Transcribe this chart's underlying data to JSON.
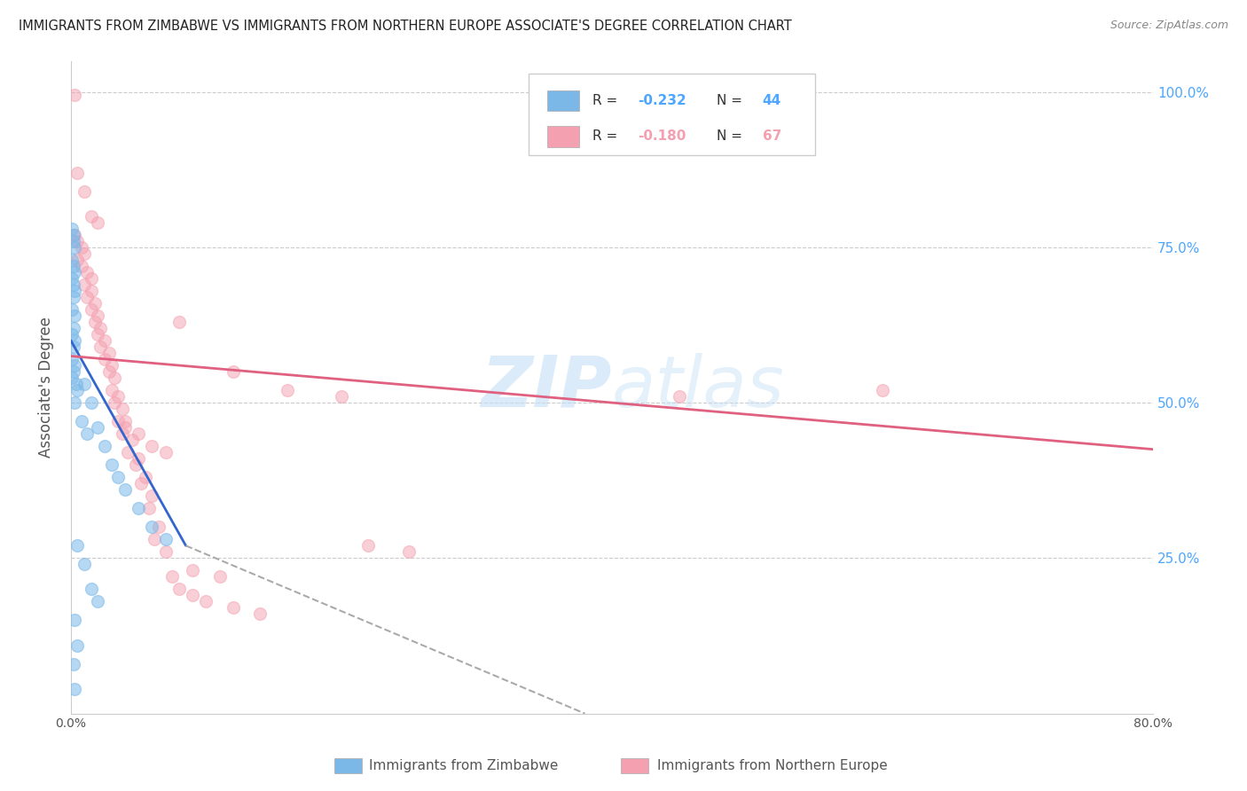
{
  "title": "IMMIGRANTS FROM ZIMBABWE VS IMMIGRANTS FROM NORTHERN EUROPE ASSOCIATE'S DEGREE CORRELATION CHART",
  "source": "Source: ZipAtlas.com",
  "ylabel": "Associate's Degree",
  "right_yticks": [
    "100.0%",
    "75.0%",
    "50.0%",
    "25.0%"
  ],
  "right_ytick_vals": [
    1.0,
    0.75,
    0.5,
    0.25
  ],
  "xlim": [
    0.0,
    0.8
  ],
  "ylim": [
    0.0,
    1.05
  ],
  "watermark": "ZIPatlas",
  "blue_scatter": [
    [
      0.001,
      0.78
    ],
    [
      0.002,
      0.77
    ],
    [
      0.002,
      0.76
    ],
    [
      0.003,
      0.75
    ],
    [
      0.001,
      0.73
    ],
    [
      0.002,
      0.72
    ],
    [
      0.003,
      0.71
    ],
    [
      0.001,
      0.7
    ],
    [
      0.002,
      0.69
    ],
    [
      0.003,
      0.68
    ],
    [
      0.002,
      0.67
    ],
    [
      0.001,
      0.65
    ],
    [
      0.003,
      0.64
    ],
    [
      0.002,
      0.62
    ],
    [
      0.001,
      0.61
    ],
    [
      0.003,
      0.6
    ],
    [
      0.002,
      0.59
    ],
    [
      0.001,
      0.57
    ],
    [
      0.003,
      0.56
    ],
    [
      0.002,
      0.55
    ],
    [
      0.001,
      0.54
    ],
    [
      0.004,
      0.53
    ],
    [
      0.005,
      0.52
    ],
    [
      0.003,
      0.5
    ],
    [
      0.01,
      0.53
    ],
    [
      0.015,
      0.5
    ],
    [
      0.02,
      0.46
    ],
    [
      0.025,
      0.43
    ],
    [
      0.03,
      0.4
    ],
    [
      0.035,
      0.38
    ],
    [
      0.04,
      0.36
    ],
    [
      0.05,
      0.33
    ],
    [
      0.06,
      0.3
    ],
    [
      0.07,
      0.28
    ],
    [
      0.005,
      0.27
    ],
    [
      0.01,
      0.24
    ],
    [
      0.015,
      0.2
    ],
    [
      0.02,
      0.18
    ],
    [
      0.003,
      0.15
    ],
    [
      0.005,
      0.11
    ],
    [
      0.002,
      0.08
    ],
    [
      0.003,
      0.04
    ],
    [
      0.008,
      0.47
    ],
    [
      0.012,
      0.45
    ]
  ],
  "pink_scatter": [
    [
      0.003,
      0.995
    ],
    [
      0.005,
      0.87
    ],
    [
      0.01,
      0.84
    ],
    [
      0.015,
      0.8
    ],
    [
      0.02,
      0.79
    ],
    [
      0.003,
      0.77
    ],
    [
      0.005,
      0.76
    ],
    [
      0.008,
      0.75
    ],
    [
      0.01,
      0.74
    ],
    [
      0.005,
      0.73
    ],
    [
      0.008,
      0.72
    ],
    [
      0.012,
      0.71
    ],
    [
      0.015,
      0.7
    ],
    [
      0.01,
      0.69
    ],
    [
      0.015,
      0.68
    ],
    [
      0.012,
      0.67
    ],
    [
      0.018,
      0.66
    ],
    [
      0.015,
      0.65
    ],
    [
      0.02,
      0.64
    ],
    [
      0.018,
      0.63
    ],
    [
      0.022,
      0.62
    ],
    [
      0.02,
      0.61
    ],
    [
      0.025,
      0.6
    ],
    [
      0.022,
      0.59
    ],
    [
      0.028,
      0.58
    ],
    [
      0.025,
      0.57
    ],
    [
      0.03,
      0.56
    ],
    [
      0.028,
      0.55
    ],
    [
      0.032,
      0.54
    ],
    [
      0.03,
      0.52
    ],
    [
      0.035,
      0.51
    ],
    [
      0.032,
      0.5
    ],
    [
      0.038,
      0.49
    ],
    [
      0.035,
      0.47
    ],
    [
      0.04,
      0.46
    ],
    [
      0.038,
      0.45
    ],
    [
      0.045,
      0.44
    ],
    [
      0.042,
      0.42
    ],
    [
      0.05,
      0.41
    ],
    [
      0.048,
      0.4
    ],
    [
      0.055,
      0.38
    ],
    [
      0.052,
      0.37
    ],
    [
      0.06,
      0.35
    ],
    [
      0.058,
      0.33
    ],
    [
      0.065,
      0.3
    ],
    [
      0.062,
      0.28
    ],
    [
      0.07,
      0.26
    ],
    [
      0.075,
      0.22
    ],
    [
      0.08,
      0.2
    ],
    [
      0.09,
      0.19
    ],
    [
      0.1,
      0.18
    ],
    [
      0.12,
      0.17
    ],
    [
      0.14,
      0.16
    ],
    [
      0.16,
      0.52
    ],
    [
      0.2,
      0.51
    ],
    [
      0.22,
      0.27
    ],
    [
      0.25,
      0.26
    ],
    [
      0.45,
      0.51
    ],
    [
      0.6,
      0.52
    ],
    [
      0.08,
      0.63
    ],
    [
      0.12,
      0.55
    ],
    [
      0.04,
      0.47
    ],
    [
      0.05,
      0.45
    ],
    [
      0.06,
      0.43
    ],
    [
      0.07,
      0.42
    ],
    [
      0.09,
      0.23
    ],
    [
      0.11,
      0.22
    ]
  ],
  "blue_line": {
    "x": [
      0.0,
      0.085
    ],
    "y": [
      0.6,
      0.27
    ]
  },
  "blue_dashed_line": {
    "x": [
      0.085,
      0.38
    ],
    "y": [
      0.27,
      0.0
    ]
  },
  "pink_line": {
    "x": [
      0.0,
      0.8
    ],
    "y": [
      0.575,
      0.425
    ]
  },
  "background_color": "#ffffff",
  "grid_color": "#cccccc",
  "title_color": "#222222",
  "right_axis_color": "#4da6ff",
  "blue_color": "#7bb8e8",
  "pink_color": "#f4a0b0",
  "blue_line_color": "#3366cc",
  "pink_line_color": "#e06080",
  "marker_size": 100,
  "legend_r1": "-0.232",
  "legend_n1": "44",
  "legend_r2": "-0.180",
  "legend_n2": "67"
}
